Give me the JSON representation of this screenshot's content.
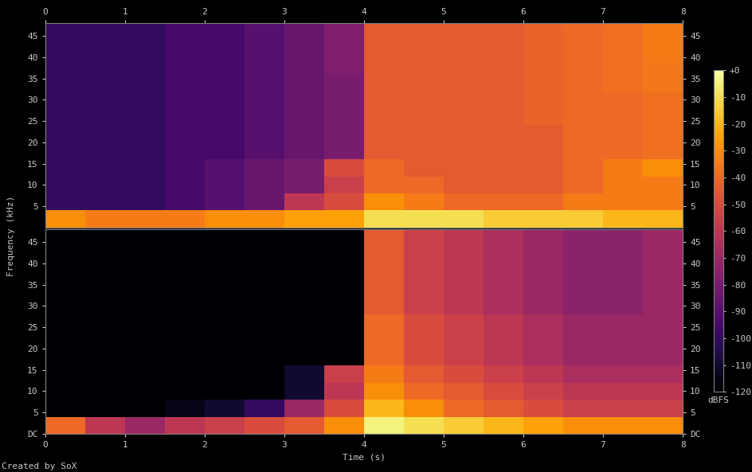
{
  "chart_data": {
    "type": "heatmap",
    "xlabel": "Time (s)",
    "ylabel": "Frequency (kHz)",
    "footnote": "Created by SoX",
    "xlim": [
      0,
      8
    ],
    "xticks": [
      0,
      1,
      2,
      3,
      4,
      5,
      6,
      7,
      8
    ],
    "ylim": [
      0,
      48
    ],
    "x_edges": [
      0,
      0.5,
      1,
      1.5,
      2,
      2.5,
      3,
      3.5,
      4,
      4.5,
      5,
      5.5,
      6,
      6.5,
      7,
      7.5,
      8
    ],
    "y_edges": [
      0,
      4,
      8,
      12,
      16,
      20,
      24,
      28,
      32,
      36,
      40,
      44,
      48
    ],
    "colorbar": {
      "label": "dBFS",
      "range": [
        -120,
        0
      ],
      "ticks": [
        {
          "value": 0,
          "label": "+0"
        },
        -10,
        -20,
        -30,
        -40,
        -50,
        -60,
        -70,
        -80,
        -90,
        -100,
        -110,
        -120
      ]
    },
    "panels": [
      {
        "yticks": [
          5,
          10,
          15,
          20,
          25,
          30,
          35,
          40,
          45
        ],
        "cells": [
          [
            -30,
            -35,
            -35,
            -35,
            -30,
            -30,
            -25,
            -25,
            -10,
            -10,
            -10,
            -15,
            -15,
            -15,
            -20,
            -20
          ],
          [
            -100,
            -100,
            -100,
            -95,
            -90,
            -85,
            -60,
            -50,
            -30,
            -35,
            -40,
            -40,
            -40,
            -35,
            -35,
            -35
          ],
          [
            -100,
            -100,
            -100,
            -95,
            -90,
            -85,
            -80,
            -55,
            -40,
            -40,
            -45,
            -45,
            -45,
            -40,
            -35,
            -35
          ],
          [
            -100,
            -100,
            -100,
            -95,
            -90,
            -85,
            -80,
            -50,
            -40,
            -45,
            -45,
            -45,
            -45,
            -40,
            -35,
            -30
          ],
          [
            -100,
            -100,
            -100,
            -95,
            -95,
            -90,
            -85,
            -80,
            -45,
            -45,
            -45,
            -45,
            -45,
            -40,
            -40,
            -38
          ],
          [
            -100,
            -100,
            -100,
            -95,
            -95,
            -90,
            -85,
            -80,
            -45,
            -45,
            -45,
            -45,
            -45,
            -40,
            -40,
            -38
          ],
          [
            -100,
            -100,
            -100,
            -95,
            -95,
            -90,
            -85,
            -80,
            -45,
            -45,
            -45,
            -45,
            -42,
            -40,
            -40,
            -38
          ],
          [
            -100,
            -100,
            -100,
            -95,
            -95,
            -90,
            -85,
            -80,
            -45,
            -45,
            -45,
            -45,
            -42,
            -40,
            -40,
            -38
          ],
          [
            -100,
            -100,
            -100,
            -95,
            -95,
            -90,
            -85,
            -80,
            -45,
            -45,
            -45,
            -45,
            -42,
            -40,
            -38,
            -36
          ],
          [
            -100,
            -100,
            -100,
            -95,
            -95,
            -90,
            -85,
            -78,
            -45,
            -45,
            -45,
            -45,
            -42,
            -40,
            -38,
            -36
          ],
          [
            -100,
            -100,
            -100,
            -95,
            -95,
            -90,
            -85,
            -78,
            -45,
            -45,
            -45,
            -45,
            -42,
            -40,
            -38,
            -35
          ],
          [
            -100,
            -100,
            -100,
            -95,
            -95,
            -90,
            -85,
            -78,
            -45,
            -45,
            -45,
            -45,
            -42,
            -40,
            -38,
            -35
          ]
        ]
      },
      {
        "yticks": [
          {
            "value": 0,
            "label": "DC"
          },
          5,
          10,
          15,
          20,
          25,
          30,
          35,
          40,
          45
        ],
        "cells": [
          [
            -40,
            -60,
            -70,
            -60,
            -55,
            -50,
            -45,
            -30,
            -5,
            -10,
            -15,
            -20,
            -25,
            -30,
            -30,
            -30
          ],
          [
            -120,
            -120,
            -120,
            -115,
            -110,
            -100,
            -70,
            -50,
            -20,
            -30,
            -40,
            -45,
            -50,
            -55,
            -55,
            -55
          ],
          [
            -120,
            -120,
            -120,
            -120,
            -120,
            -120,
            -110,
            -60,
            -30,
            -40,
            -45,
            -50,
            -55,
            -60,
            -60,
            -60
          ],
          [
            -120,
            -120,
            -120,
            -120,
            -120,
            -120,
            -110,
            -55,
            -35,
            -45,
            -50,
            -55,
            -60,
            -65,
            -65,
            -65
          ],
          [
            -120,
            -120,
            -120,
            -120,
            -120,
            -120,
            -120,
            -120,
            -40,
            -50,
            -55,
            -60,
            -65,
            -70,
            -70,
            -70
          ],
          [
            -120,
            -120,
            -120,
            -120,
            -120,
            -120,
            -120,
            -120,
            -40,
            -50,
            -55,
            -60,
            -65,
            -70,
            -70,
            -70
          ],
          [
            -120,
            -120,
            -120,
            -120,
            -120,
            -120,
            -120,
            -120,
            -40,
            -50,
            -55,
            -60,
            -65,
            -70,
            -70,
            -70
          ],
          [
            -120,
            -120,
            -120,
            -120,
            -120,
            -120,
            -120,
            -120,
            -45,
            -55,
            -60,
            -65,
            -70,
            -75,
            -75,
            -70
          ],
          [
            -120,
            -120,
            -120,
            -120,
            -120,
            -120,
            -120,
            -120,
            -45,
            -55,
            -60,
            -65,
            -70,
            -75,
            -75,
            -70
          ],
          [
            -120,
            -120,
            -120,
            -120,
            -120,
            -120,
            -120,
            -120,
            -45,
            -55,
            -60,
            -65,
            -70,
            -75,
            -75,
            -70
          ],
          [
            -120,
            -120,
            -120,
            -120,
            -120,
            -120,
            -120,
            -120,
            -45,
            -55,
            -60,
            -65,
            -70,
            -75,
            -75,
            -70
          ],
          [
            -120,
            -120,
            -120,
            -120,
            -120,
            -120,
            -120,
            -120,
            -45,
            -55,
            -60,
            -65,
            -70,
            -75,
            -75,
            -70
          ]
        ]
      }
    ]
  }
}
